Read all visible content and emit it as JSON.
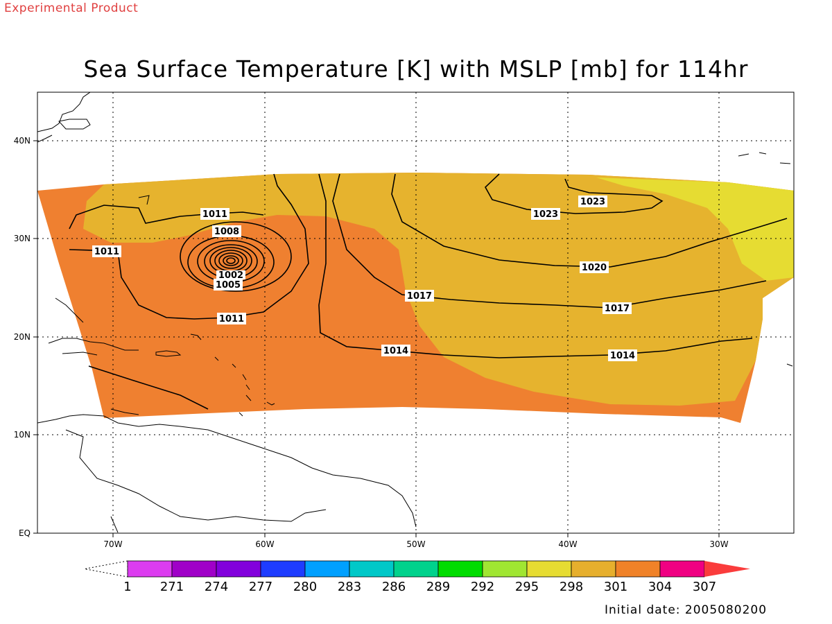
{
  "header": {
    "experimental_label": "Experimental Product",
    "title": "Sea Surface Temperature [K] with MSLP [mb] for 114hr"
  },
  "footer": {
    "initial_date": "Initial date: 2005080200"
  },
  "map": {
    "region": "Tropical / subtropical North Atlantic",
    "lon_range": [
      -75,
      -25
    ],
    "lat_range": [
      0,
      45
    ],
    "x_ticks": [
      "70W",
      "60W",
      "50W",
      "40W",
      "30W"
    ],
    "y_ticks": [
      "EQ",
      "10N",
      "20N",
      "30N",
      "40N"
    ],
    "grid": "dotted",
    "colors": {
      "sst_298_301": "#e6b32e",
      "sst_301_304": "#ef8030",
      "sst_295_298": "#e6dc32",
      "land_outline": "#000000"
    },
    "isobar_labels": [
      {
        "text": "1011",
        "id": "a"
      },
      {
        "text": "1011",
        "id": "b"
      },
      {
        "text": "1008",
        "id": "c"
      },
      {
        "text": "1005",
        "id": "d"
      },
      {
        "text": "1002",
        "id": "e"
      },
      {
        "text": "1011",
        "id": "f"
      },
      {
        "text": "1017",
        "id": "g"
      },
      {
        "text": "1014",
        "id": "h"
      },
      {
        "text": "1023",
        "id": "i"
      },
      {
        "text": "1023",
        "id": "j"
      },
      {
        "text": "1020",
        "id": "k"
      },
      {
        "text": "1017",
        "id": "l"
      },
      {
        "text": "1014",
        "id": "m"
      }
    ]
  },
  "colorbar": {
    "labels": [
      "1",
      "271",
      "274",
      "277",
      "280",
      "283",
      "286",
      "289",
      "292",
      "295",
      "298",
      "301",
      "304",
      "307"
    ],
    "colors": [
      "#dc3cf0",
      "#a000c8",
      "#8200dc",
      "#1e3cff",
      "#00a0ff",
      "#00c8c8",
      "#00d28c",
      "#00dc00",
      "#a0e632",
      "#e6dc32",
      "#e6af2d",
      "#f08228",
      "#f00082",
      "#fa3c3c"
    ]
  }
}
